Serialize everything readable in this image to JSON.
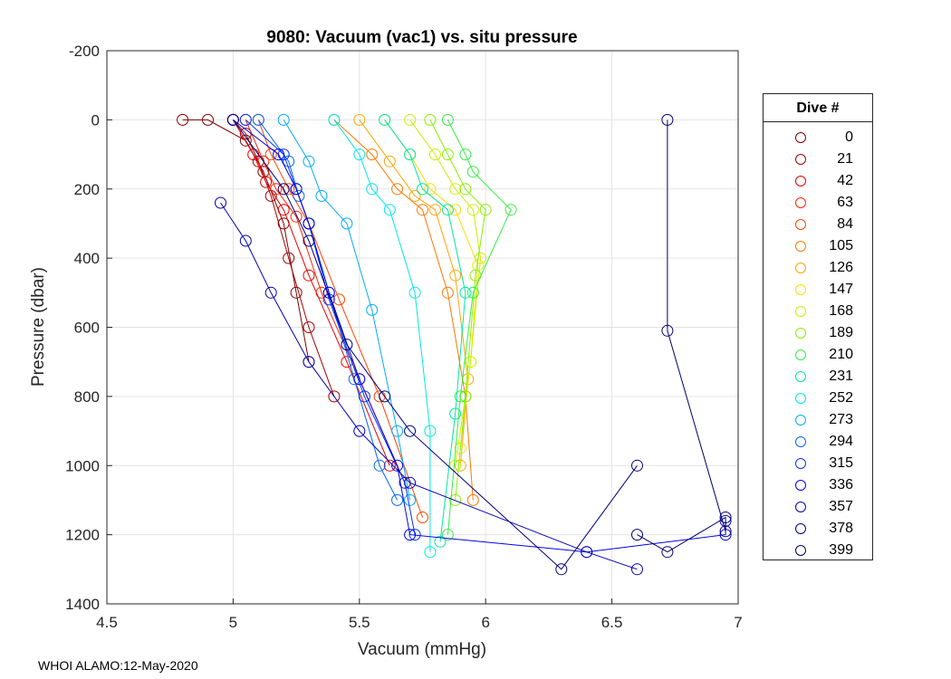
{
  "chart_data": {
    "type": "line",
    "title": "9080: Vacuum (vac1) vs. situ pressure",
    "xlabel": "Vacuum (mmHg)",
    "ylabel": "Pressure (dbar)",
    "xlim": [
      4.5,
      7
    ],
    "ylim": [
      -200,
      1400
    ],
    "y_reversed": true,
    "grid": true,
    "marker": "circle",
    "x_ticks": [
      4.5,
      5,
      5.5,
      6,
      6.5,
      7
    ],
    "x_tick_labels": [
      "4.5",
      "5",
      "5.5",
      "6",
      "6.5",
      "7"
    ],
    "y_ticks": [
      -200,
      0,
      200,
      400,
      600,
      800,
      1000,
      1200,
      1400
    ],
    "y_tick_labels": [
      "-200",
      "0",
      "200",
      "400",
      "600",
      "800",
      "1000",
      "1200",
      "1400"
    ],
    "legend_title": "Dive #",
    "legend_position": "outside-right",
    "series": [
      {
        "name": "0",
        "color": "#800000",
        "x": [
          4.8,
          4.9,
          5.05,
          5.12,
          5.2,
          5.25,
          5.3
        ],
        "y": [
          0,
          0,
          60,
          150,
          300,
          500,
          700
        ]
      },
      {
        "name": "21",
        "color": "#a40000",
        "x": [
          5.0,
          5.05,
          5.1,
          5.15,
          5.22,
          5.3,
          5.4
        ],
        "y": [
          0,
          40,
          120,
          220,
          400,
          600,
          800
        ]
      },
      {
        "name": "42",
        "color": "#e60000",
        "x": [
          5.0,
          5.08,
          5.13,
          5.2,
          5.3,
          5.45,
          5.62
        ],
        "y": [
          0,
          100,
          180,
          260,
          450,
          700,
          1000
        ]
      },
      {
        "name": "63",
        "color": "#ff2200",
        "x": [
          5.05,
          5.12,
          5.17,
          5.25,
          5.35,
          5.5,
          5.68
        ],
        "y": [
          0,
          120,
          200,
          280,
          500,
          750,
          1050
        ]
      },
      {
        "name": "84",
        "color": "#ff4400",
        "x": [
          5.1,
          5.15,
          5.22,
          5.3,
          5.42,
          5.58,
          5.75
        ],
        "y": [
          0,
          100,
          200,
          300,
          520,
          800,
          1150
        ]
      },
      {
        "name": "105",
        "color": "#ff7700",
        "x": [
          5.4,
          5.55,
          5.65,
          5.75,
          5.85,
          5.92,
          5.95
        ],
        "y": [
          0,
          100,
          200,
          260,
          500,
          800,
          1100
        ]
      },
      {
        "name": "126",
        "color": "#ffa500",
        "x": [
          5.5,
          5.62,
          5.72,
          5.8,
          5.88,
          5.93,
          5.9
        ],
        "y": [
          0,
          120,
          220,
          260,
          450,
          750,
          1000
        ]
      },
      {
        "name": "147",
        "color": "#ffdd00",
        "x": [
          5.6,
          5.7,
          5.78,
          5.88,
          5.97,
          5.94,
          5.9
        ],
        "y": [
          0,
          100,
          200,
          260,
          420,
          700,
          950
        ]
      },
      {
        "name": "168",
        "color": "#ccee00",
        "x": [
          5.7,
          5.8,
          5.88,
          5.95,
          5.98,
          5.94,
          5.88
        ],
        "y": [
          0,
          100,
          200,
          260,
          400,
          700,
          1000
        ]
      },
      {
        "name": "189",
        "color": "#88f000",
        "x": [
          5.78,
          5.85,
          5.92,
          6.0,
          5.96,
          5.92,
          5.88
        ],
        "y": [
          0,
          100,
          200,
          260,
          450,
          800,
          1100
        ]
      },
      {
        "name": "210",
        "color": "#33ee44",
        "x": [
          5.85,
          5.92,
          5.95,
          6.1,
          5.95,
          5.9,
          5.85
        ],
        "y": [
          0,
          100,
          150,
          260,
          500,
          800,
          1200
        ]
      },
      {
        "name": "231",
        "color": "#00e6a0",
        "x": [
          5.6,
          5.7,
          5.75,
          5.85,
          5.92,
          5.88,
          5.82
        ],
        "y": [
          0,
          100,
          200,
          260,
          500,
          850,
          1220
        ]
      },
      {
        "name": "252",
        "color": "#00e6e6",
        "x": [
          5.4,
          5.5,
          5.55,
          5.62,
          5.72,
          5.78,
          5.78
        ],
        "y": [
          0,
          100,
          200,
          260,
          500,
          900,
          1250
        ]
      },
      {
        "name": "273",
        "color": "#00aaff",
        "x": [
          5.2,
          5.3,
          5.35,
          5.45,
          5.55,
          5.65,
          5.7
        ],
        "y": [
          0,
          120,
          220,
          300,
          550,
          900,
          1100
        ]
      },
      {
        "name": "294",
        "color": "#0066ff",
        "x": [
          5.1,
          5.22,
          5.26,
          5.3,
          5.38,
          5.48,
          5.58,
          5.65
        ],
        "y": [
          0,
          120,
          220,
          300,
          500,
          750,
          1000,
          1100
        ]
      },
      {
        "name": "315",
        "color": "#0033ff",
        "x": [
          5.05,
          5.2,
          5.25,
          5.3,
          5.38,
          5.52,
          5.68,
          5.72
        ],
        "y": [
          0,
          100,
          200,
          300,
          520,
          800,
          1050,
          1200
        ]
      },
      {
        "name": "336",
        "color": "#0000e6",
        "x": [
          5.0,
          5.18,
          5.25,
          5.3,
          5.38,
          5.5,
          5.65,
          5.7,
          6.4,
          6.95,
          6.95
        ],
        "y": [
          0,
          100,
          200,
          300,
          500,
          750,
          1000,
          1200,
          1250,
          1200,
          1160
        ]
      },
      {
        "name": "357",
        "color": "#0000b3",
        "x": [
          4.95,
          5.05,
          5.15,
          5.3,
          5.5,
          5.7,
          6.4,
          6.6
        ],
        "y": [
          240,
          350,
          500,
          700,
          900,
          1050,
          1250,
          1300
        ]
      },
      {
        "name": "378",
        "color": "#000080",
        "x": [
          5.0,
          5.2,
          5.3,
          5.45,
          5.6,
          5.7,
          6.3,
          6.6
        ],
        "y": [
          0,
          200,
          350,
          650,
          800,
          900,
          1300,
          1000
        ]
      },
      {
        "name": "399",
        "color": "#00006b",
        "x": [
          6.72,
          6.72,
          6.95,
          6.95,
          6.72,
          6.6
        ],
        "y": [
          0,
          610,
          1190,
          1150,
          1250,
          1200
        ]
      }
    ]
  },
  "footer": "WHOI ALAMO:12-May-2020"
}
